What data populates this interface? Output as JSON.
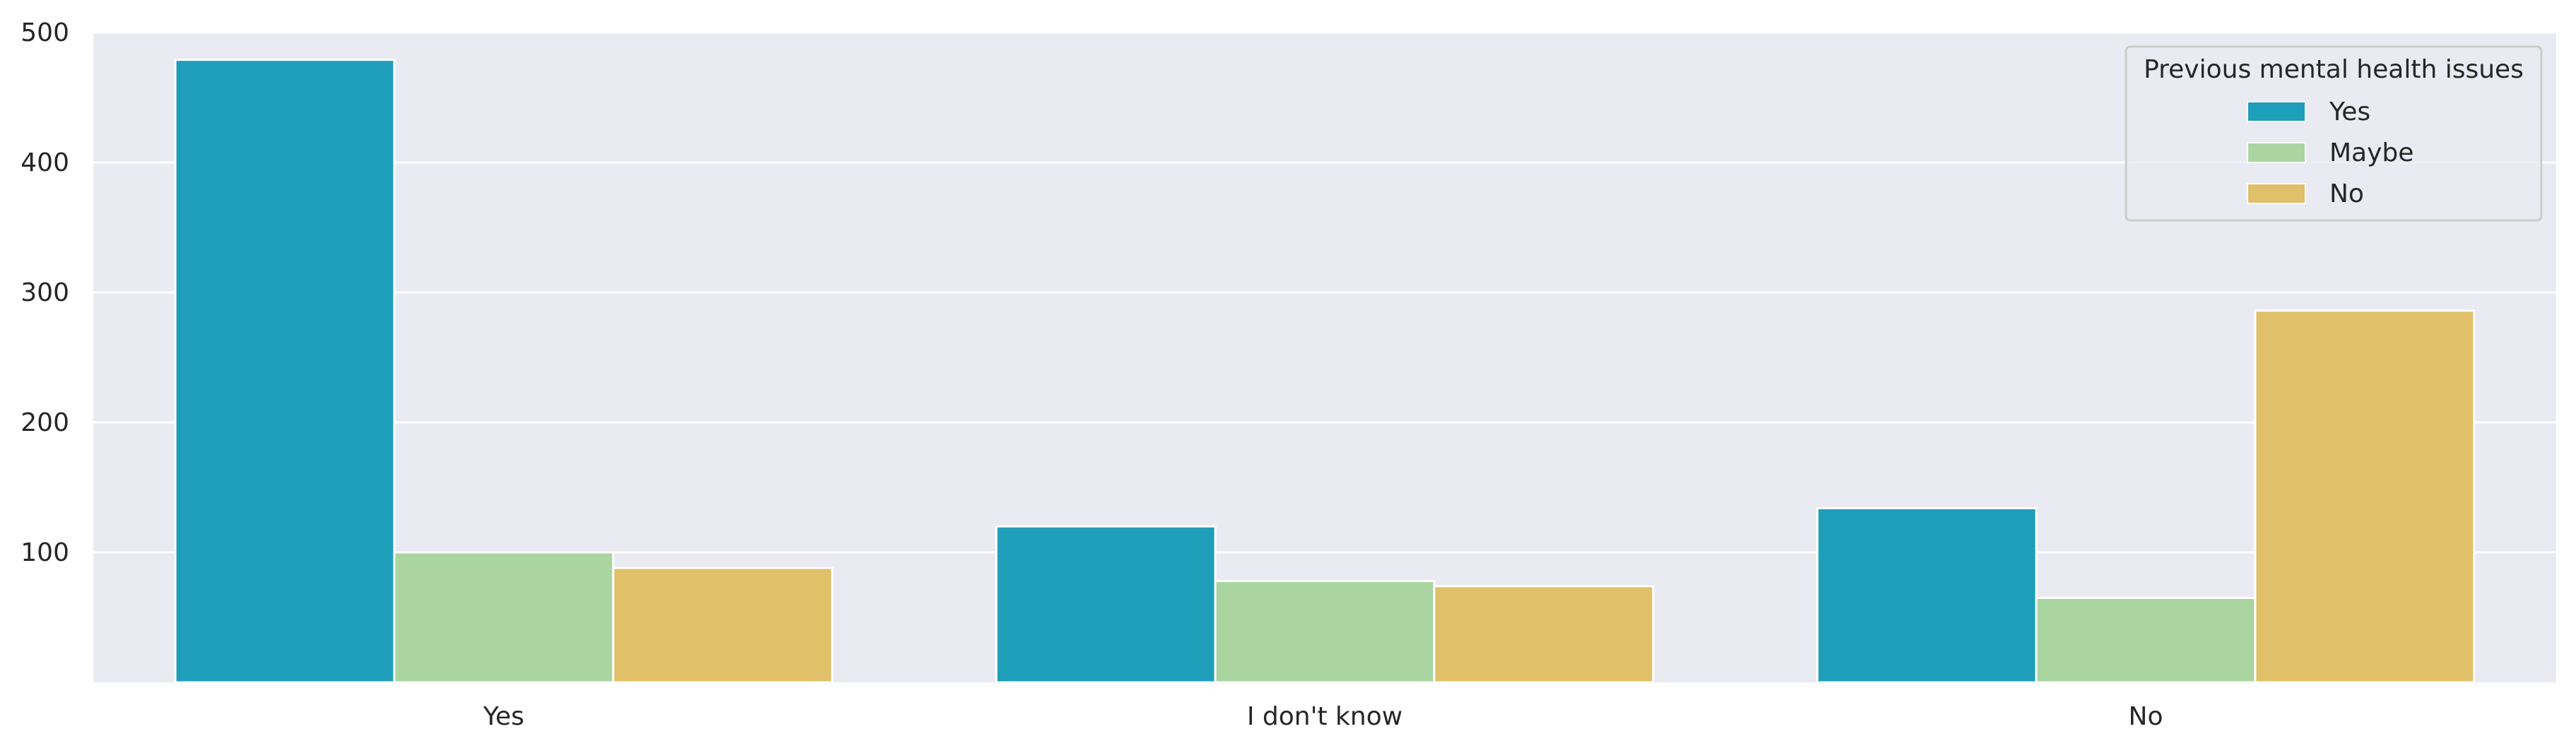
{
  "chart_data": {
    "type": "bar",
    "title": "",
    "xlabel": "",
    "ylabel": "",
    "categories": [
      "Yes",
      "I don't know",
      "No"
    ],
    "series": [
      {
        "name": "Yes",
        "color": "#1f9eb9",
        "values": [
          479,
          120,
          134
        ]
      },
      {
        "name": "Maybe",
        "color": "#abd5a0",
        "values": [
          100,
          78,
          65
        ]
      },
      {
        "name": "No",
        "color": "#e0c068",
        "values": [
          88,
          74,
          286
        ]
      }
    ],
    "ylim": [
      0,
      500
    ],
    "yticks": [
      100,
      200,
      300,
      400,
      500
    ],
    "grid": true,
    "legend": {
      "title": "Previous mental health issues",
      "placement": "top-right"
    },
    "colors": {
      "plot_background": "#eaeaf2",
      "grid": "#ffffff",
      "text": "#262626"
    }
  }
}
